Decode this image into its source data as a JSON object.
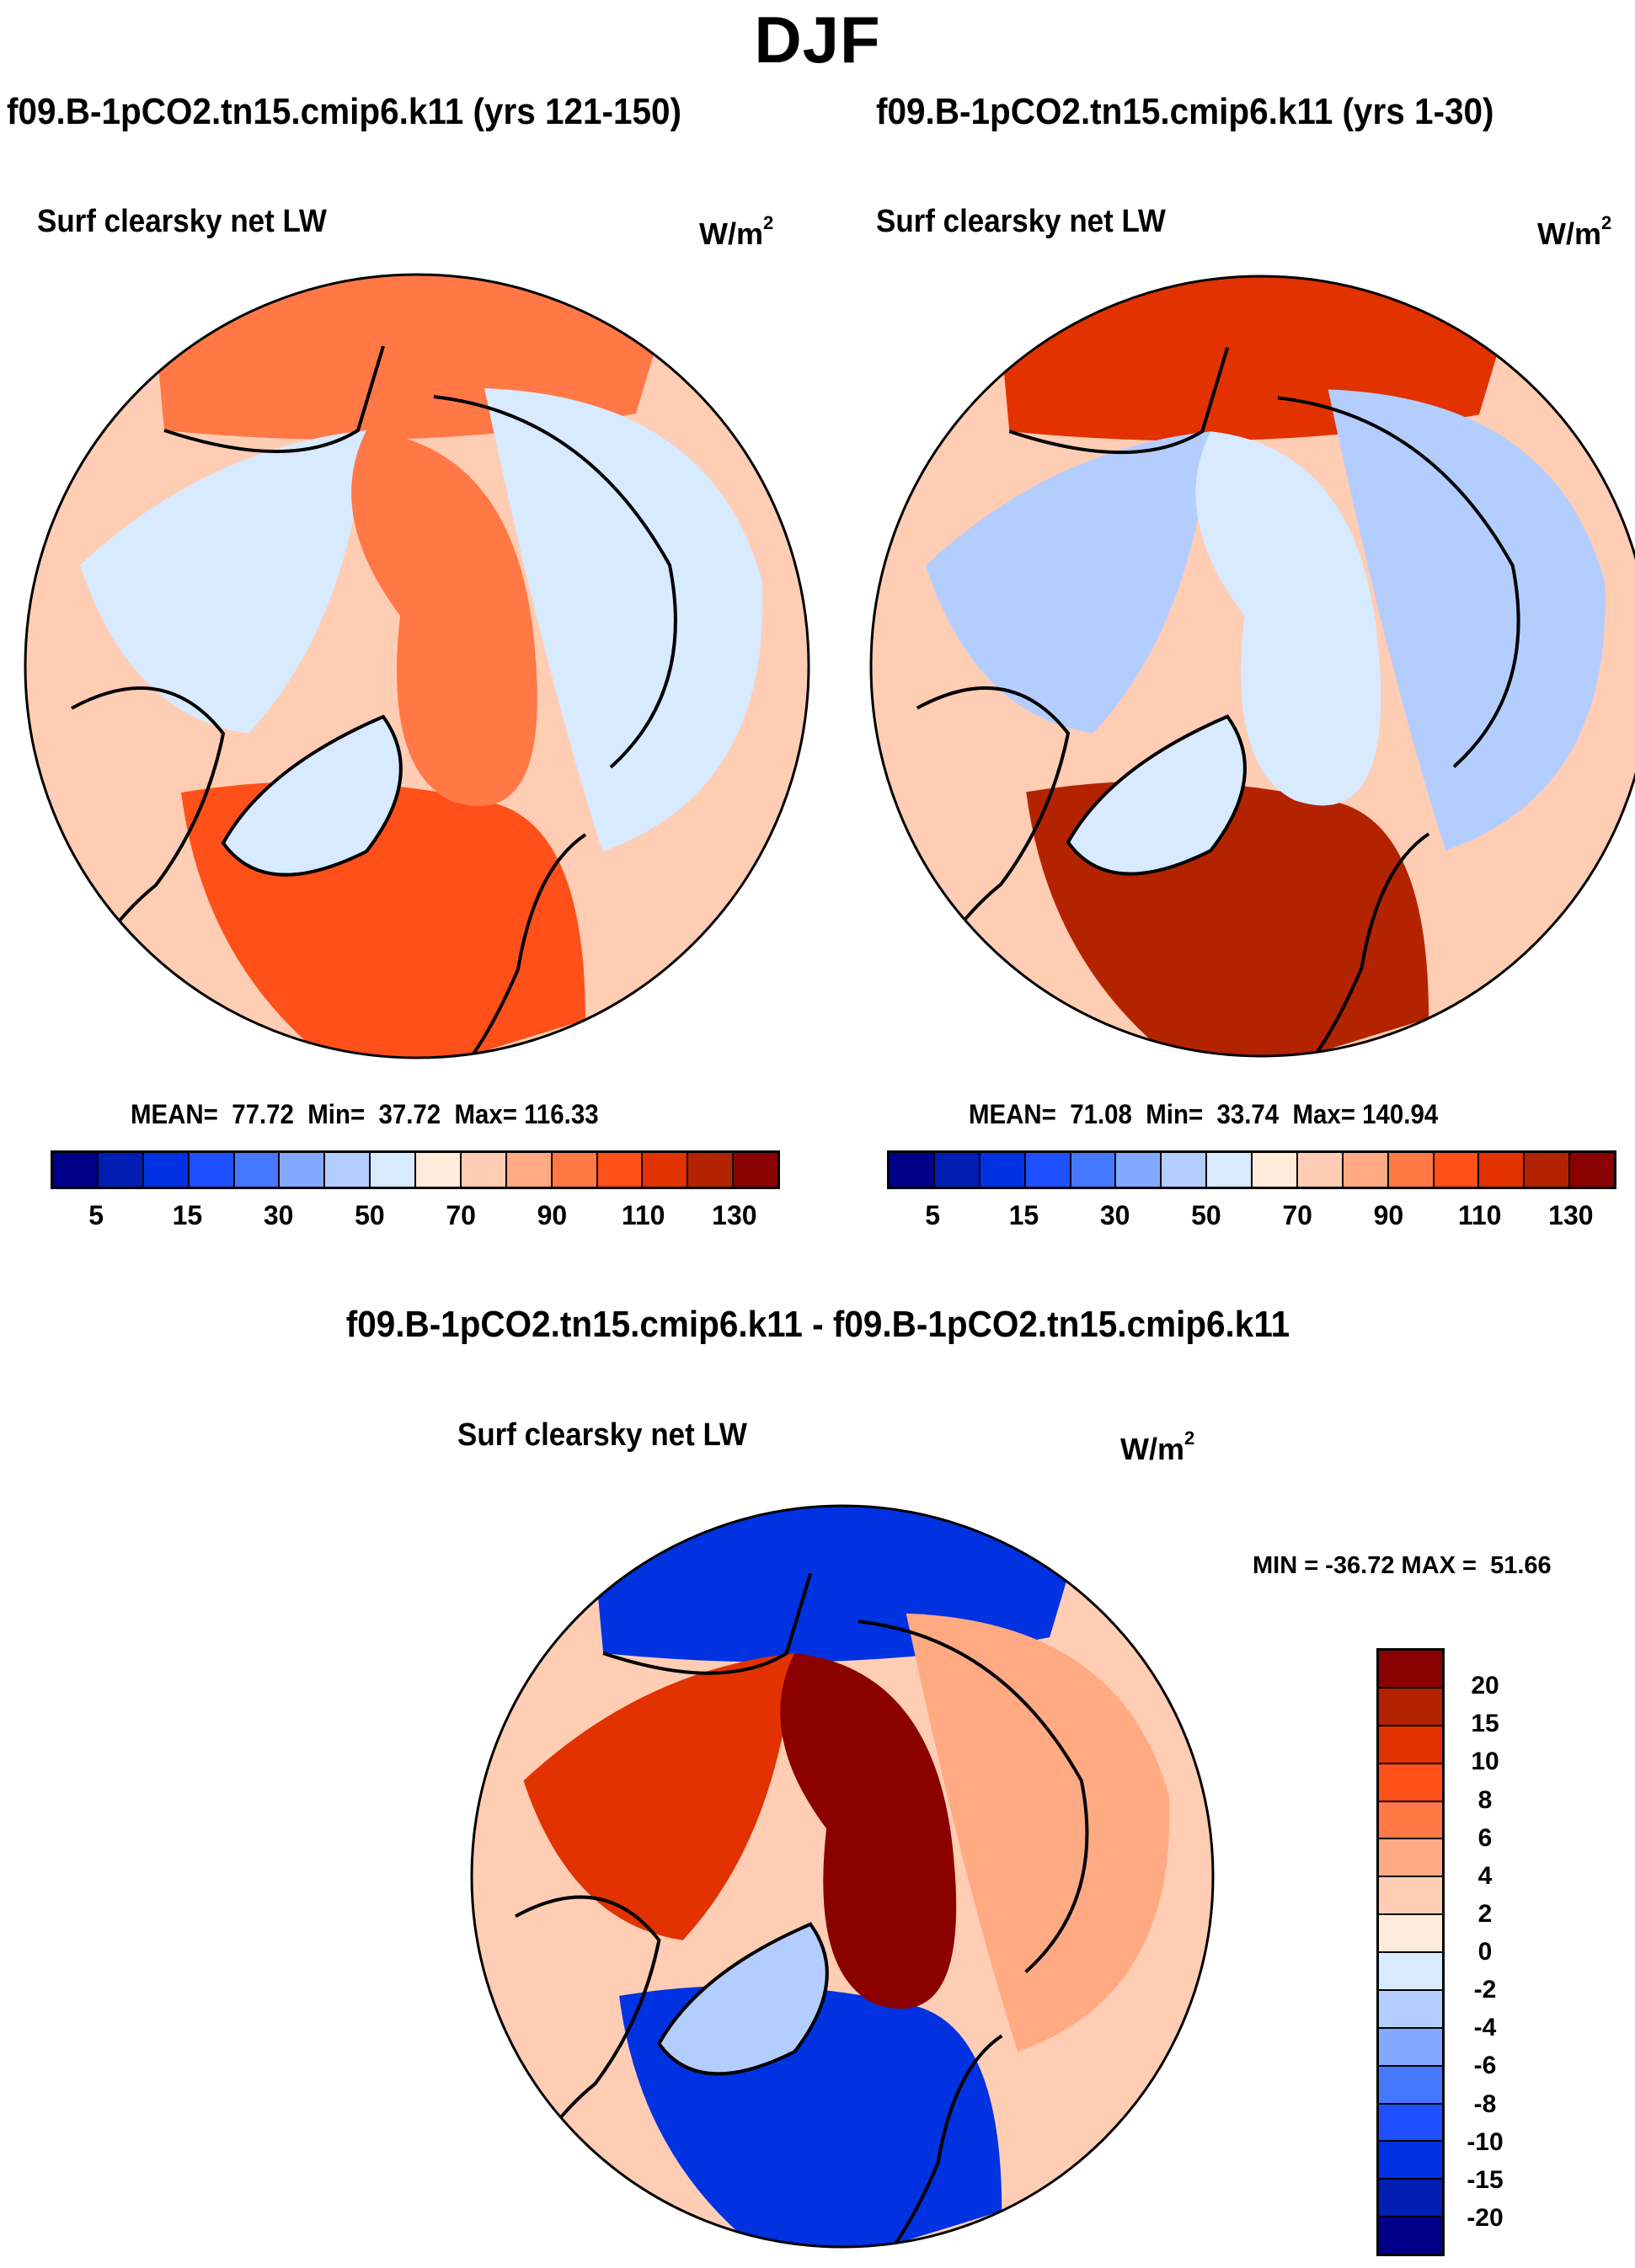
{
  "chart_data": [
    {
      "type": "heatmap",
      "projection": "north-polar-stereographic",
      "panel": "top-left",
      "title": "f09.B-1pCO2.tn15.cmip6.k11 (yrs 121-150)",
      "variable": "Surf clearsky net LW",
      "units": "W/m",
      "units_superscript": "2",
      "stats": {
        "mean_label": "MEAN=",
        "mean": "77.72",
        "min_label": "Min=",
        "min": "37.72",
        "max_label": "Max=",
        "max": "116.33"
      },
      "colorbar": {
        "orientation": "horizontal",
        "levels": [
          5,
          10,
          15,
          20,
          30,
          40,
          50,
          60,
          70,
          80,
          90,
          100,
          110,
          120,
          130
        ],
        "tick_labels": [
          "5",
          "15",
          "30",
          "50",
          "70",
          "90",
          "110",
          "130"
        ],
        "colors": [
          "#00008b",
          "#001eb4",
          "#0032e1",
          "#1e50ff",
          "#4678ff",
          "#82a8ff",
          "#b4cdff",
          "#d7eaff",
          "#ffebd9",
          "#ffcdb4",
          "#ffaa82",
          "#ff7846",
          "#ff5019",
          "#e13200",
          "#b42300",
          "#8b0000"
        ]
      },
      "regions": [
        {
          "name": "arctic-ocean-center",
          "value": 95
        },
        {
          "name": "north-atlantic",
          "value": 105
        },
        {
          "name": "siberia",
          "value": 55
        },
        {
          "name": "canada",
          "value": 55
        },
        {
          "name": "greenland",
          "value": 58
        },
        {
          "name": "north-pacific",
          "value": 95
        },
        {
          "name": "outer-ring",
          "value": 75
        }
      ]
    },
    {
      "type": "heatmap",
      "projection": "north-polar-stereographic",
      "panel": "top-right",
      "title": "f09.B-1pCO2.tn15.cmip6.k11 (yrs 1-30)",
      "variable": "Surf clearsky net LW",
      "units": "W/m",
      "units_superscript": "2",
      "stats": {
        "mean_label": "MEAN=",
        "mean": "71.08",
        "min_label": "Min=",
        "min": "33.74",
        "max_label": "Max=",
        "max": "140.94"
      },
      "colorbar": {
        "orientation": "horizontal",
        "levels": [
          5,
          10,
          15,
          20,
          30,
          40,
          50,
          60,
          70,
          80,
          90,
          100,
          110,
          120,
          130
        ],
        "tick_labels": [
          "5",
          "15",
          "30",
          "50",
          "70",
          "90",
          "110",
          "130"
        ],
        "colors": [
          "#00008b",
          "#001eb4",
          "#0032e1",
          "#1e50ff",
          "#4678ff",
          "#82a8ff",
          "#b4cdff",
          "#d7eaff",
          "#ffebd9",
          "#ffcdb4",
          "#ffaa82",
          "#ff7846",
          "#ff5019",
          "#e13200",
          "#b42300",
          "#8b0000"
        ]
      },
      "regions": [
        {
          "name": "arctic-ocean-center",
          "value": 55
        },
        {
          "name": "north-atlantic",
          "value": 125
        },
        {
          "name": "siberia",
          "value": 45
        },
        {
          "name": "canada",
          "value": 45
        },
        {
          "name": "greenland",
          "value": 58
        },
        {
          "name": "north-pacific",
          "value": 110
        },
        {
          "name": "outer-ring",
          "value": 75
        }
      ]
    },
    {
      "type": "heatmap",
      "projection": "north-polar-stereographic",
      "panel": "bottom-difference",
      "title": "f09.B-1pCO2.tn15.cmip6.k11 - f09.B-1pCO2.tn15.cmip6.k11",
      "variable": "Surf clearsky net LW",
      "units": "W/m",
      "units_superscript": "2",
      "stats": {
        "min_label": "MIN =",
        "min": "-36.72",
        "max_label": "MAX =",
        "max": "51.66"
      },
      "colorbar": {
        "orientation": "vertical",
        "levels": [
          20,
          15,
          10,
          8,
          6,
          4,
          2,
          0,
          -2,
          -4,
          -6,
          -8,
          -10,
          -15,
          -20
        ],
        "tick_labels": [
          "20",
          "15",
          "10",
          "8",
          "6",
          "4",
          "2",
          "0",
          "-2",
          "-4",
          "-6",
          "-8",
          "-10",
          "-15",
          "-20"
        ],
        "colors": [
          "#8b0000",
          "#b42300",
          "#e13200",
          "#ff5019",
          "#ff7846",
          "#ffaa82",
          "#ffcdb4",
          "#ffebd9",
          "#d7eaff",
          "#b4cdff",
          "#82a8ff",
          "#4678ff",
          "#1e50ff",
          "#0032e1",
          "#001eb4",
          "#00008b"
        ]
      },
      "regions": [
        {
          "name": "arctic-ocean-center",
          "value": 25
        },
        {
          "name": "north-atlantic",
          "value": -15
        },
        {
          "name": "siberia",
          "value": 5
        },
        {
          "name": "canada",
          "value": 12
        },
        {
          "name": "greenland",
          "value": -3
        },
        {
          "name": "north-pacific",
          "value": -12
        },
        {
          "name": "outer-ring",
          "value": 3
        }
      ]
    }
  ],
  "figure": {
    "season_title": "DJF"
  }
}
